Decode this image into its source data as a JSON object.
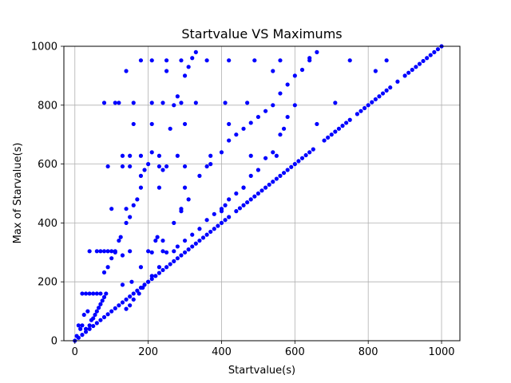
{
  "chart_data": {
    "type": "scatter",
    "title": "Startvalue VS Maximums",
    "xlabel": "Startvalue(s)",
    "ylabel": "Max of Starvalue(s)",
    "xlim": [
      -30,
      1050
    ],
    "ylim": [
      0,
      1000
    ],
    "xticks": [
      0,
      200,
      400,
      600,
      800,
      1000
    ],
    "yticks": [
      0,
      200,
      400,
      600,
      800,
      1000
    ],
    "grid": true,
    "marker_color": "#0000ff",
    "series": [
      {
        "points": [
          [
            0,
            0
          ],
          [
            10,
            10
          ],
          [
            20,
            20
          ],
          [
            30,
            30
          ],
          [
            40,
            40
          ],
          [
            50,
            50
          ],
          [
            60,
            60
          ],
          [
            70,
            70
          ],
          [
            80,
            80
          ],
          [
            90,
            90
          ],
          [
            100,
            100
          ],
          [
            110,
            110
          ],
          [
            120,
            120
          ],
          [
            130,
            130
          ],
          [
            140,
            140
          ],
          [
            150,
            150
          ],
          [
            160,
            160
          ],
          [
            170,
            170
          ],
          [
            180,
            180
          ],
          [
            190,
            190
          ],
          [
            200,
            200
          ],
          [
            210,
            210
          ],
          [
            220,
            220
          ],
          [
            230,
            230
          ],
          [
            240,
            240
          ],
          [
            250,
            250
          ],
          [
            260,
            260
          ],
          [
            270,
            270
          ],
          [
            280,
            280
          ],
          [
            290,
            290
          ],
          [
            300,
            300
          ],
          [
            310,
            310
          ],
          [
            320,
            320
          ],
          [
            330,
            330
          ],
          [
            340,
            340
          ],
          [
            350,
            350
          ],
          [
            360,
            360
          ],
          [
            370,
            370
          ],
          [
            380,
            380
          ],
          [
            390,
            390
          ],
          [
            400,
            400
          ],
          [
            410,
            410
          ],
          [
            420,
            420
          ],
          [
            440,
            440
          ],
          [
            450,
            450
          ],
          [
            460,
            460
          ],
          [
            470,
            470
          ],
          [
            480,
            480
          ],
          [
            490,
            490
          ],
          [
            500,
            500
          ],
          [
            510,
            510
          ],
          [
            520,
            520
          ],
          [
            530,
            530
          ],
          [
            540,
            540
          ],
          [
            550,
            550
          ],
          [
            560,
            560
          ],
          [
            570,
            570
          ],
          [
            580,
            580
          ],
          [
            590,
            590
          ],
          [
            600,
            600
          ],
          [
            610,
            610
          ],
          [
            620,
            620
          ],
          [
            630,
            630
          ],
          [
            640,
            640
          ],
          [
            650,
            650
          ],
          [
            680,
            680
          ],
          [
            690,
            690
          ],
          [
            700,
            700
          ],
          [
            710,
            710
          ],
          [
            720,
            720
          ],
          [
            730,
            730
          ],
          [
            740,
            740
          ],
          [
            750,
            750
          ],
          [
            770,
            770
          ],
          [
            780,
            780
          ],
          [
            790,
            790
          ],
          [
            800,
            800
          ],
          [
            810,
            810
          ],
          [
            820,
            820
          ],
          [
            830,
            830
          ],
          [
            840,
            840
          ],
          [
            850,
            850
          ],
          [
            860,
            860
          ],
          [
            880,
            880
          ],
          [
            900,
            900
          ],
          [
            910,
            910
          ],
          [
            920,
            920
          ],
          [
            930,
            930
          ],
          [
            940,
            940
          ],
          [
            950,
            950
          ],
          [
            960,
            960
          ],
          [
            970,
            970
          ],
          [
            980,
            980
          ],
          [
            990,
            990
          ],
          [
            1000,
            1000
          ],
          [
            5,
            16
          ],
          [
            10,
            52
          ],
          [
            15,
            40
          ],
          [
            20,
            52
          ],
          [
            25,
            88
          ],
          [
            30,
            40
          ],
          [
            35,
            100
          ],
          [
            40,
            52
          ],
          [
            45,
            70
          ],
          [
            50,
            76
          ],
          [
            55,
            88
          ],
          [
            60,
            100
          ],
          [
            65,
            112
          ],
          [
            70,
            124
          ],
          [
            75,
            136
          ],
          [
            80,
            148
          ],
          [
            85,
            160
          ],
          [
            80,
            232
          ],
          [
            90,
            250
          ],
          [
            100,
            280
          ],
          [
            110,
            300
          ],
          [
            120,
            340
          ],
          [
            125,
            352
          ],
          [
            130,
            290
          ],
          [
            140,
            400
          ],
          [
            150,
            420
          ],
          [
            160,
            460
          ],
          [
            170,
            480
          ],
          [
            180,
            560
          ],
          [
            190,
            580
          ],
          [
            200,
            600
          ],
          [
            210,
            640
          ],
          [
            220,
            340
          ],
          [
            225,
            352
          ],
          [
            240,
            580
          ],
          [
            260,
            720
          ],
          [
            270,
            800
          ],
          [
            280,
            830
          ],
          [
            300,
            900
          ],
          [
            310,
            930
          ],
          [
            320,
            960
          ],
          [
            330,
            980
          ],
          [
            140,
            108
          ],
          [
            150,
            120
          ],
          [
            160,
            140
          ],
          [
            175,
            160
          ],
          [
            185,
            180
          ],
          [
            200,
            200
          ],
          [
            210,
            220
          ],
          [
            230,
            250
          ],
          [
            250,
            300
          ],
          [
            280,
            320
          ],
          [
            300,
            340
          ],
          [
            320,
            360
          ],
          [
            340,
            380
          ],
          [
            360,
            410
          ],
          [
            380,
            430
          ],
          [
            400,
            440
          ],
          [
            410,
            460
          ],
          [
            420,
            480
          ],
          [
            440,
            500
          ],
          [
            460,
            520
          ],
          [
            480,
            560
          ],
          [
            500,
            580
          ],
          [
            520,
            620
          ],
          [
            540,
            640
          ],
          [
            560,
            700
          ],
          [
            570,
            720
          ],
          [
            580,
            760
          ],
          [
            600,
            800
          ],
          [
            130,
            190
          ],
          [
            155,
            200
          ],
          [
            180,
            250
          ],
          [
            210,
            300
          ],
          [
            240,
            340
          ],
          [
            270,
            400
          ],
          [
            290,
            440
          ],
          [
            310,
            480
          ],
          [
            340,
            560
          ],
          [
            370,
            600
          ],
          [
            400,
            640
          ],
          [
            420,
            680
          ],
          [
            440,
            700
          ],
          [
            460,
            720
          ],
          [
            480,
            740
          ],
          [
            500,
            760
          ],
          [
            520,
            780
          ],
          [
            540,
            800
          ],
          [
            560,
            840
          ],
          [
            580,
            870
          ],
          [
            600,
            900
          ],
          [
            620,
            920
          ],
          [
            640,
            960
          ],
          [
            660,
            980
          ],
          [
            20,
            160
          ],
          [
            30,
            160
          ],
          [
            40,
            160
          ],
          [
            50,
            160
          ],
          [
            60,
            160
          ],
          [
            70,
            160
          ],
          [
            40,
            304
          ],
          [
            60,
            304
          ],
          [
            70,
            304
          ],
          [
            80,
            304
          ],
          [
            90,
            304
          ],
          [
            100,
            304
          ],
          [
            110,
            304
          ],
          [
            150,
            304
          ],
          [
            200,
            304
          ],
          [
            240,
            304
          ],
          [
            270,
            304
          ],
          [
            90,
            592
          ],
          [
            130,
            592
          ],
          [
            150,
            592
          ],
          [
            230,
            592
          ],
          [
            250,
            592
          ],
          [
            300,
            592
          ],
          [
            360,
            592
          ],
          [
            80,
            808
          ],
          [
            110,
            808
          ],
          [
            120,
            808
          ],
          [
            160,
            808
          ],
          [
            210,
            808
          ],
          [
            240,
            808
          ],
          [
            290,
            808
          ],
          [
            330,
            808
          ],
          [
            410,
            808
          ],
          [
            470,
            808
          ],
          [
            710,
            808
          ],
          [
            130,
            628
          ],
          [
            150,
            628
          ],
          [
            180,
            628
          ],
          [
            230,
            628
          ],
          [
            280,
            628
          ],
          [
            370,
            628
          ],
          [
            480,
            628
          ],
          [
            550,
            628
          ],
          [
            180,
            952
          ],
          [
            210,
            952
          ],
          [
            250,
            952
          ],
          [
            290,
            952
          ],
          [
            360,
            952
          ],
          [
            420,
            952
          ],
          [
            490,
            952
          ],
          [
            560,
            952
          ],
          [
            640,
            952
          ],
          [
            750,
            952
          ],
          [
            850,
            952
          ],
          [
            140,
            916
          ],
          [
            250,
            916
          ],
          [
            540,
            916
          ],
          [
            820,
            916
          ],
          [
            160,
            736
          ],
          [
            210,
            736
          ],
          [
            300,
            736
          ],
          [
            420,
            736
          ],
          [
            660,
            736
          ],
          [
            100,
            448
          ],
          [
            140,
            448
          ],
          [
            400,
            448
          ],
          [
            290,
            448
          ],
          [
            180,
            520
          ],
          [
            230,
            520
          ],
          [
            300,
            520
          ],
          [
            460,
            520
          ]
        ]
      }
    ]
  }
}
